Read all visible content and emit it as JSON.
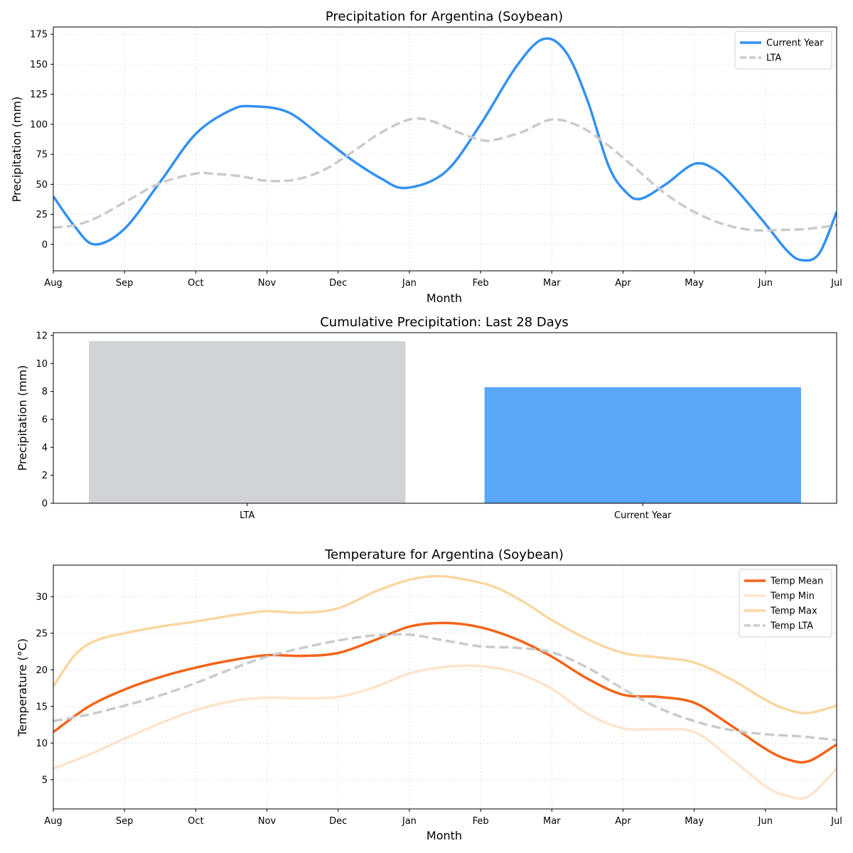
{
  "chart_data": [
    {
      "id": "precip",
      "type": "line",
      "title": "Precipitation for Argentina (Soybean)",
      "xlabel": "Month",
      "ylabel": "Precipitation (mm)",
      "categories": [
        "Aug",
        "Sep",
        "Oct",
        "Nov",
        "Dec",
        "Jan",
        "Feb",
        "Mar",
        "Apr",
        "May",
        "Jun",
        "Jul"
      ],
      "ylim": [
        -22,
        181
      ],
      "yticks": [
        0,
        25,
        50,
        75,
        100,
        125,
        150,
        175
      ],
      "grid": true,
      "legend_position": "top-right",
      "series": [
        {
          "name": "Current Year",
          "color": "#3391f0",
          "dashed": false,
          "points": [
            [
              0,
              40
            ],
            [
              0.3,
              15
            ],
            [
              0.58,
              0
            ],
            [
              1,
              13
            ],
            [
              1.5,
              52
            ],
            [
              2,
              92
            ],
            [
              2.5,
              112
            ],
            [
              2.8,
              115
            ],
            [
              3.3,
              110
            ],
            [
              3.8,
              88
            ],
            [
              4.2,
              70
            ],
            [
              4.6,
              55
            ],
            [
              4.95,
              47
            ],
            [
              5.5,
              60
            ],
            [
              6,
              100
            ],
            [
              6.5,
              148
            ],
            [
              6.88,
              171
            ],
            [
              7.2,
              160
            ],
            [
              7.5,
              120
            ],
            [
              7.8,
              65
            ],
            [
              8.05,
              43
            ],
            [
              8.25,
              38
            ],
            [
              8.6,
              50
            ],
            [
              9,
              67
            ],
            [
              9.3,
              62
            ],
            [
              9.6,
              45
            ],
            [
              10,
              17
            ],
            [
              10.3,
              -5
            ],
            [
              10.5,
              -13
            ],
            [
              10.75,
              -8
            ],
            [
              11,
              27
            ]
          ]
        },
        {
          "name": "LTA",
          "color": "#c8cacc",
          "dashed": true,
          "points": [
            [
              0,
              14
            ],
            [
              0.3,
              16
            ],
            [
              0.6,
              22
            ],
            [
              1,
              35
            ],
            [
              1.5,
              51
            ],
            [
              2,
              59
            ],
            [
              2.2,
              59
            ],
            [
              2.6,
              57
            ],
            [
              3,
              53
            ],
            [
              3.4,
              54
            ],
            [
              3.8,
              62
            ],
            [
              4.2,
              77
            ],
            [
              4.6,
              93
            ],
            [
              5,
              104
            ],
            [
              5.3,
              103
            ],
            [
              5.7,
              93
            ],
            [
              6,
              87
            ],
            [
              6.2,
              87
            ],
            [
              6.6,
              94
            ],
            [
              7,
              104
            ],
            [
              7.4,
              98
            ],
            [
              7.8,
              82
            ],
            [
              8.2,
              62
            ],
            [
              8.6,
              42
            ],
            [
              9,
              27
            ],
            [
              9.4,
              17
            ],
            [
              9.8,
              12
            ],
            [
              10.2,
              12
            ],
            [
              10.6,
              13
            ],
            [
              11,
              16
            ]
          ]
        }
      ]
    },
    {
      "id": "cumulative",
      "type": "bar",
      "title": "Cumulative Precipitation: Last 28 Days",
      "ylabel": "Precipitation (mm)",
      "categories": [
        "LTA",
        "Current Year"
      ],
      "values": [
        11.6,
        8.3
      ],
      "colors": [
        "#d1d4d7",
        "#5aa6f9"
      ],
      "ylim": [
        0,
        12.2
      ],
      "yticks": [
        0,
        2,
        4,
        6,
        8,
        10,
        12
      ],
      "grid": false
    },
    {
      "id": "temp",
      "type": "line",
      "title": "Temperature for Argentina (Soybean)",
      "xlabel": "Month",
      "ylabel": "Temperature (°C)",
      "categories": [
        "Aug",
        "Sep",
        "Oct",
        "Nov",
        "Dec",
        "Jan",
        "Feb",
        "Mar",
        "Apr",
        "May",
        "Jun",
        "Jul"
      ],
      "ylim": [
        1,
        34.3
      ],
      "yticks": [
        5,
        10,
        15,
        20,
        25,
        30
      ],
      "grid": true,
      "legend_position": "top-right",
      "series": [
        {
          "name": "Temp Mean",
          "color": "#f26418",
          "dashed": false,
          "points": [
            [
              0,
              11.5
            ],
            [
              0.5,
              15
            ],
            [
              1,
              17.3
            ],
            [
              1.5,
              19
            ],
            [
              2,
              20.3
            ],
            [
              2.5,
              21.3
            ],
            [
              3,
              22
            ],
            [
              3.5,
              21.9
            ],
            [
              4,
              22.3
            ],
            [
              4.5,
              24
            ],
            [
              5,
              25.9
            ],
            [
              5.5,
              26.4
            ],
            [
              6,
              25.8
            ],
            [
              6.5,
              24.2
            ],
            [
              7,
              21.8
            ],
            [
              7.5,
              18.8
            ],
            [
              8,
              16.6
            ],
            [
              8.5,
              16.3
            ],
            [
              9,
              15.5
            ],
            [
              9.5,
              12.5
            ],
            [
              10,
              9.2
            ],
            [
              10.3,
              7.8
            ],
            [
              10.6,
              7.5
            ],
            [
              11,
              9.8
            ]
          ]
        },
        {
          "name": "Temp Min",
          "color": "#fde4cc",
          "dashed": false,
          "points": [
            [
              0,
              6.5
            ],
            [
              0.5,
              8.4
            ],
            [
              1,
              10.6
            ],
            [
              1.5,
              12.7
            ],
            [
              2,
              14.5
            ],
            [
              2.5,
              15.7
            ],
            [
              3,
              16.2
            ],
            [
              3.5,
              16.1
            ],
            [
              4,
              16.3
            ],
            [
              4.5,
              17.6
            ],
            [
              5,
              19.5
            ],
            [
              5.5,
              20.4
            ],
            [
              6,
              20.5
            ],
            [
              6.5,
              19.6
            ],
            [
              7,
              17.4
            ],
            [
              7.5,
              14
            ],
            [
              8,
              12
            ],
            [
              8.5,
              11.9
            ],
            [
              9,
              11.5
            ],
            [
              9.5,
              8
            ],
            [
              10,
              4.1
            ],
            [
              10.3,
              2.8
            ],
            [
              10.6,
              2.7
            ],
            [
              11,
              6.5
            ]
          ]
        },
        {
          "name": "Temp Max",
          "color": "#fad7a1",
          "dashed": false,
          "points": [
            [
              0,
              17.7
            ],
            [
              0.3,
              22
            ],
            [
              0.6,
              24
            ],
            [
              1,
              25
            ],
            [
              1.5,
              25.9
            ],
            [
              2,
              26.6
            ],
            [
              2.5,
              27.4
            ],
            [
              3,
              28
            ],
            [
              3.5,
              27.8
            ],
            [
              4,
              28.4
            ],
            [
              4.5,
              30.6
            ],
            [
              5,
              32.3
            ],
            [
              5.4,
              32.8
            ],
            [
              5.8,
              32.3
            ],
            [
              6.2,
              31.3
            ],
            [
              6.6,
              29.3
            ],
            [
              7,
              26.8
            ],
            [
              7.5,
              24.2
            ],
            [
              8,
              22.3
            ],
            [
              8.5,
              21.7
            ],
            [
              9,
              21
            ],
            [
              9.5,
              18.8
            ],
            [
              10,
              15.9
            ],
            [
              10.3,
              14.6
            ],
            [
              10.6,
              14.1
            ],
            [
              11,
              15.1
            ]
          ]
        },
        {
          "name": "Temp LTA",
          "color": "#c8cacc",
          "dashed": true,
          "points": [
            [
              0,
              13
            ],
            [
              0.5,
              13.9
            ],
            [
              1,
              15.1
            ],
            [
              1.5,
              16.5
            ],
            [
              2,
              18.2
            ],
            [
              2.5,
              20.1
            ],
            [
              3,
              21.8
            ],
            [
              3.5,
              23
            ],
            [
              4,
              24
            ],
            [
              4.5,
              24.7
            ],
            [
              5,
              24.8
            ],
            [
              5.5,
              24
            ],
            [
              6,
              23.2
            ],
            [
              6.5,
              23
            ],
            [
              7,
              22.4
            ],
            [
              7.5,
              20.3
            ],
            [
              8,
              17.4
            ],
            [
              8.5,
              14.8
            ],
            [
              9,
              13
            ],
            [
              9.5,
              11.8
            ],
            [
              10,
              11.2
            ],
            [
              10.5,
              10.9
            ],
            [
              11,
              10.4
            ]
          ]
        }
      ]
    }
  ]
}
